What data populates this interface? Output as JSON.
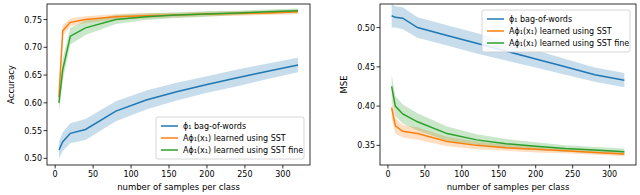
{
  "chart_data": [
    {
      "type": "line",
      "x_label": "number of samples per class",
      "y_label": "Accuracy",
      "x": [
        5,
        10,
        20,
        40,
        80,
        120,
        160,
        200,
        240,
        280,
        320
      ],
      "xlim": [
        -10.75,
        335.75
      ],
      "xticks": [
        0,
        50,
        100,
        150,
        200,
        250,
        300
      ],
      "ylim": [
        0.488,
        0.778
      ],
      "yticks": [
        {
          "value": 0.5,
          "label": "0.50"
        },
        0.55,
        {
          "value": 0.6,
          "label": "0.60"
        },
        0.65,
        {
          "value": 0.7,
          "label": "0.70"
        },
        0.75
      ],
      "legend": "lower right",
      "series": [
        {
          "name": "ϕ₁ bag-of-words",
          "color": "#1f77b4",
          "values": [
            0.515,
            0.53,
            0.545,
            0.552,
            0.585,
            0.605,
            0.62,
            0.633,
            0.645,
            0.657,
            0.668
          ],
          "lower": [
            0.5,
            0.513,
            0.527,
            0.533,
            0.567,
            0.588,
            0.604,
            0.618,
            0.63,
            0.643,
            0.655
          ],
          "upper": [
            0.53,
            0.547,
            0.563,
            0.571,
            0.603,
            0.622,
            0.636,
            0.648,
            0.66,
            0.671,
            0.681
          ]
        },
        {
          "name": "Aϕ₁(x₁) learned using SST",
          "color": "#ff7f0e",
          "values": [
            0.61,
            0.73,
            0.745,
            0.75,
            0.755,
            0.757,
            0.758,
            0.76,
            0.761,
            0.762,
            0.764
          ],
          "lower": [
            0.595,
            0.72,
            0.738,
            0.744,
            0.75,
            0.752,
            0.754,
            0.756,
            0.757,
            0.758,
            0.76
          ],
          "upper": [
            0.625,
            0.74,
            0.752,
            0.756,
            0.76,
            0.762,
            0.762,
            0.764,
            0.765,
            0.766,
            0.768
          ]
        },
        {
          "name": "Aϕ₁(x₁) learned using SST fine",
          "color": "#2ca02c",
          "values": [
            0.6,
            0.66,
            0.72,
            0.735,
            0.75,
            0.755,
            0.758,
            0.76,
            0.762,
            0.764,
            0.766
          ],
          "lower": [
            0.585,
            0.64,
            0.705,
            0.722,
            0.742,
            0.749,
            0.753,
            0.755,
            0.758,
            0.76,
            0.762
          ],
          "upper": [
            0.615,
            0.68,
            0.735,
            0.748,
            0.758,
            0.761,
            0.763,
            0.765,
            0.766,
            0.768,
            0.77
          ]
        }
      ]
    },
    {
      "type": "line",
      "x_label": "number of samples per class",
      "y_label": "MSE",
      "x": [
        5,
        10,
        20,
        40,
        80,
        120,
        160,
        200,
        240,
        280,
        320
      ],
      "xlim": [
        -10.75,
        335.75
      ],
      "xticks": [
        0,
        50,
        100,
        150,
        200,
        250,
        300
      ],
      "ylim": [
        0.325,
        0.53
      ],
      "yticks": [
        0.35,
        {
          "value": 0.4,
          "label": "0.40"
        },
        0.45,
        {
          "value": 0.5,
          "label": "0.50"
        }
      ],
      "legend": "upper right",
      "series": [
        {
          "name": "ϕ₁ bag-of-words",
          "color": "#1f77b4",
          "values": [
            0.515,
            0.513,
            0.512,
            0.5,
            0.49,
            0.48,
            0.47,
            0.46,
            0.45,
            0.44,
            0.433
          ],
          "lower": [
            0.5,
            0.5,
            0.498,
            0.487,
            0.477,
            0.467,
            0.458,
            0.449,
            0.44,
            0.431,
            0.424
          ],
          "upper": [
            0.53,
            0.527,
            0.526,
            0.513,
            0.503,
            0.493,
            0.482,
            0.471,
            0.46,
            0.449,
            0.442
          ]
        },
        {
          "name": "Aϕ₁(x₁) learned using SST",
          "color": "#ff7f0e",
          "values": [
            0.398,
            0.375,
            0.368,
            0.365,
            0.355,
            0.35,
            0.347,
            0.345,
            0.343,
            0.341,
            0.339
          ],
          "lower": [
            0.385,
            0.365,
            0.36,
            0.357,
            0.349,
            0.345,
            0.343,
            0.341,
            0.34,
            0.338,
            0.336
          ],
          "upper": [
            0.411,
            0.385,
            0.376,
            0.373,
            0.361,
            0.355,
            0.351,
            0.349,
            0.346,
            0.344,
            0.342
          ]
        },
        {
          "name": "Aϕ₁(x₁) learned using SST fine",
          "color": "#2ca02c",
          "values": [
            0.425,
            0.4,
            0.39,
            0.38,
            0.365,
            0.357,
            0.352,
            0.349,
            0.346,
            0.344,
            0.342
          ],
          "lower": [
            0.41,
            0.387,
            0.378,
            0.369,
            0.356,
            0.35,
            0.346,
            0.344,
            0.342,
            0.34,
            0.338
          ],
          "upper": [
            0.44,
            0.413,
            0.402,
            0.391,
            0.374,
            0.364,
            0.358,
            0.354,
            0.35,
            0.348,
            0.346
          ]
        }
      ]
    }
  ]
}
